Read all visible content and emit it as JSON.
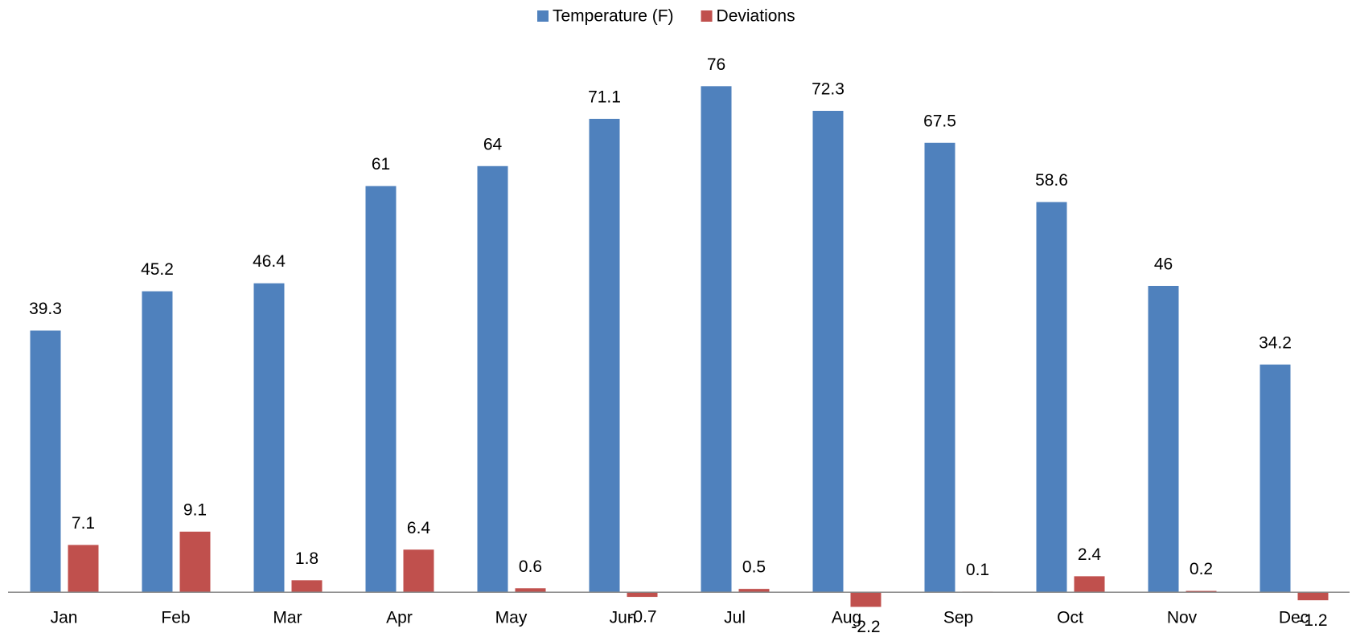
{
  "chart_data": {
    "type": "bar",
    "categories": [
      "Jan",
      "Feb",
      "Mar",
      "Apr",
      "May",
      "Jun",
      "Jul",
      "Aug",
      "Sep",
      "Oct",
      "Nov",
      "Dec"
    ],
    "series": [
      {
        "name": "Temperature (F)",
        "color": "#4f81bd",
        "values": [
          39.3,
          45.2,
          46.4,
          61,
          64,
          71.1,
          76,
          72.3,
          67.5,
          58.6,
          46,
          34.2
        ]
      },
      {
        "name": "Deviations",
        "color": "#c0504d",
        "values": [
          7.1,
          9.1,
          1.8,
          6.4,
          0.6,
          -0.7,
          0.5,
          -2.2,
          0.1,
          2.4,
          0.2,
          -1.2
        ]
      }
    ],
    "ylim": [
      -6,
      84
    ],
    "legend": "top"
  }
}
